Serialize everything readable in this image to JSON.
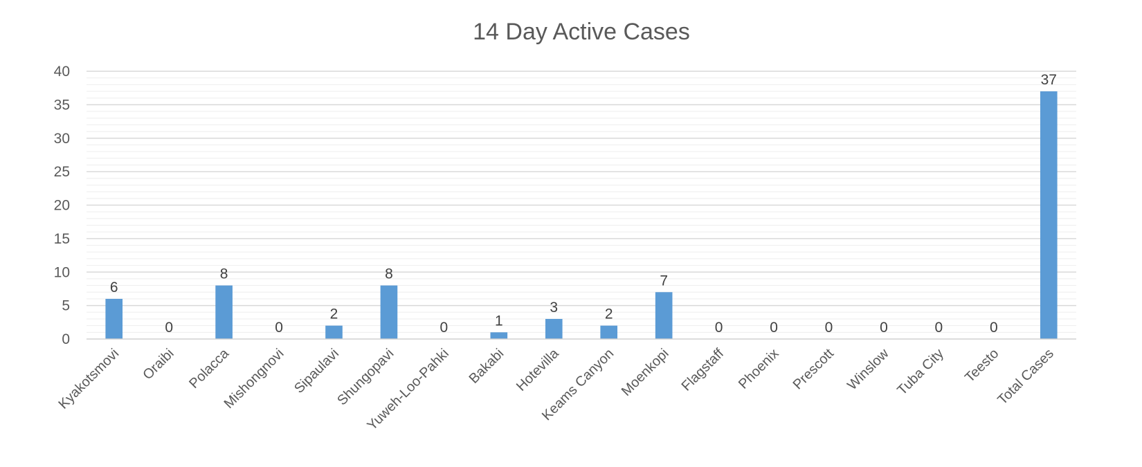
{
  "chart_data": {
    "type": "bar",
    "title": "14 Day Active Cases",
    "xlabel": "",
    "ylabel": "",
    "categories": [
      "Kyakotsmovi",
      "Oraibi",
      "Polacca",
      "Mishongnovi",
      "Sipaulavi",
      "Shungopavi",
      "Yuweh-Loo-Pahki",
      "Bakabi",
      "Hotevilla",
      "Keams Canyon",
      "Moenkopi",
      "Flagstaff",
      "Phoenix",
      "Prescott",
      "Winslow",
      "Tuba City",
      "Teesto",
      "Total Cases"
    ],
    "values": [
      6,
      0,
      8,
      0,
      2,
      8,
      0,
      1,
      3,
      2,
      7,
      0,
      0,
      0,
      0,
      0,
      0,
      37
    ],
    "ylim": [
      0,
      40
    ],
    "yticks": [
      0,
      5,
      10,
      15,
      20,
      25,
      30,
      35,
      40
    ],
    "minor_grid_step": 1,
    "grid": true,
    "legend": "none",
    "bar_color": "#5b9bd5"
  }
}
